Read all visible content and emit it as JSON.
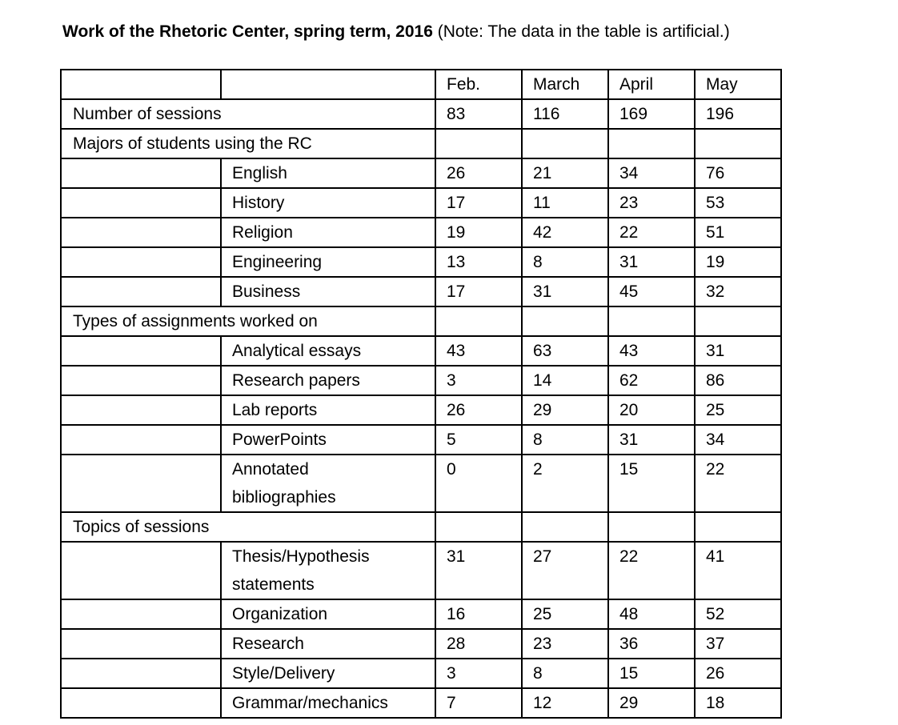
{
  "header": {
    "title_bold": "Work of the Rhetoric Center, spring term, 2016",
    "title_note": "(Note: The data in the table is artificial.)"
  },
  "table": {
    "columns": [
      "Feb.",
      "March",
      "April",
      "May"
    ],
    "rows": [
      {
        "heading": "Number of sessions",
        "values": [
          83,
          116,
          169,
          196
        ]
      },
      {
        "heading": "Majors of students using the RC"
      },
      {
        "item": "English",
        "values": [
          26,
          21,
          34,
          76
        ]
      },
      {
        "item": "History",
        "values": [
          17,
          11,
          23,
          53
        ]
      },
      {
        "item": "Religion",
        "values": [
          19,
          42,
          22,
          51
        ]
      },
      {
        "item": "Engineering",
        "values": [
          13,
          8,
          31,
          19
        ]
      },
      {
        "item": "Business",
        "values": [
          17,
          31,
          45,
          32
        ]
      },
      {
        "heading": "Types of assignments worked on"
      },
      {
        "item": "Analytical essays",
        "values": [
          43,
          63,
          43,
          31
        ]
      },
      {
        "item": "Research papers",
        "values": [
          3,
          14,
          62,
          86
        ]
      },
      {
        "item": "Lab reports",
        "values": [
          26,
          29,
          20,
          25
        ]
      },
      {
        "item": "PowerPoints",
        "values": [
          5,
          8,
          31,
          34
        ]
      },
      {
        "item": "Annotated bibliographies",
        "values": [
          0,
          2,
          15,
          22
        ]
      },
      {
        "heading": "Topics of sessions"
      },
      {
        "item": "Thesis/Hypothesis statements",
        "values": [
          31,
          27,
          22,
          41
        ]
      },
      {
        "item": "Organization",
        "values": [
          16,
          25,
          48,
          52
        ]
      },
      {
        "item": "Research",
        "values": [
          28,
          23,
          36,
          37
        ]
      },
      {
        "item": "Style/Delivery",
        "values": [
          3,
          8,
          15,
          26
        ]
      },
      {
        "item": "Grammar/mechanics",
        "values": [
          7,
          12,
          29,
          18
        ]
      }
    ]
  }
}
